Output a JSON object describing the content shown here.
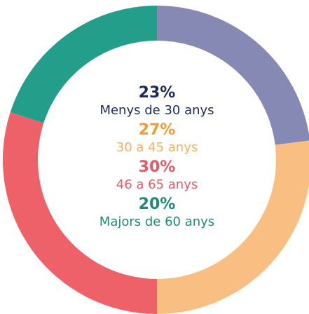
{
  "chart_data": {
    "type": "donut",
    "categories": [
      "Menys de 30 anys",
      "30 a 45 anys",
      "46 a 65 anys",
      "Majors de 60 anys"
    ],
    "values": [
      23,
      27,
      30,
      20
    ],
    "value_labels": [
      "23%",
      "27%",
      "30%",
      "20%"
    ],
    "colors": [
      "#8589b3",
      "#f9bf82",
      "#ef6169",
      "#229e8a"
    ],
    "label_colors": [
      "#1c2a5c",
      "#f39a3b",
      "#e85a63",
      "#1f8a7a"
    ],
    "category_colors": [
      "#1c2a5c",
      "#f7ae5f",
      "#e85a63",
      "#1f8a7a"
    ]
  }
}
